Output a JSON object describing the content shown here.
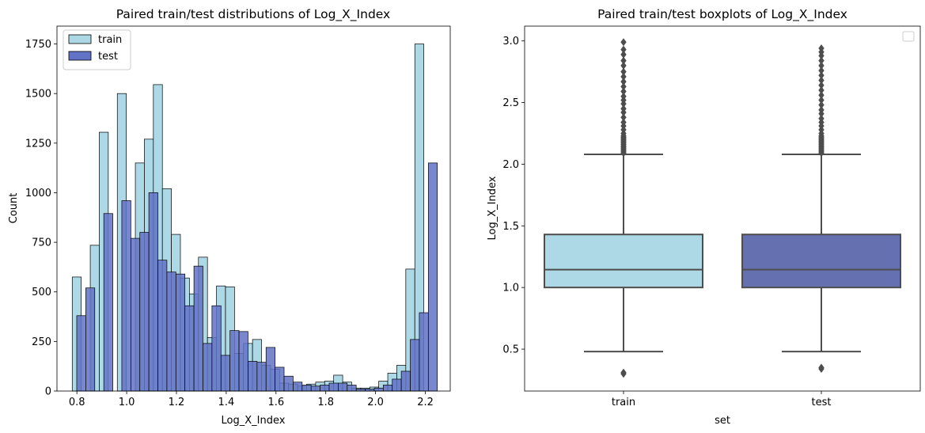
{
  "colors": {
    "train": "#add8e6",
    "test": "#6272c6",
    "test_box": "#6570b0",
    "edge": "#000000",
    "box_line": "#4d4d4d"
  },
  "chart_data": [
    {
      "type": "histogram",
      "title": "Paired train/test distributions of Log_X_Index",
      "xlabel": "Log_X_Index",
      "ylabel": "Count",
      "xlim": [
        0.72,
        2.3
      ],
      "ylim": [
        0,
        1840
      ],
      "xticks": [
        "0.8",
        "1.0",
        "1.2",
        "1.4",
        "1.6",
        "1.8",
        "2.0",
        "2.2"
      ],
      "xtick_values": [
        0.8,
        1.0,
        1.2,
        1.4,
        1.6,
        1.8,
        2.0,
        2.2
      ],
      "yticks": [
        "0",
        "250",
        "500",
        "750",
        "1000",
        "1250",
        "1500",
        "1750"
      ],
      "ytick_values": [
        0,
        250,
        500,
        750,
        1000,
        1250,
        1500,
        1750
      ],
      "legend": {
        "position": "top-left",
        "entries": [
          "train",
          "test"
        ]
      },
      "grid": false,
      "series": [
        {
          "name": "train",
          "bin_start": 0.7813,
          "bin_width": 0.03622,
          "values": [
            575,
            0,
            735,
            1305,
            0,
            1500,
            0,
            1150,
            1270,
            1545,
            1020,
            790,
            570,
            490,
            675,
            270,
            530,
            525,
            190,
            240,
            260,
            130,
            110,
            40,
            35,
            25,
            35,
            45,
            50,
            80,
            45,
            15,
            15,
            20,
            50,
            90,
            130,
            615,
            1750
          ]
        },
        {
          "name": "test",
          "bin_start": 0.7994,
          "bin_width": 0.03622,
          "values": [
            380,
            520,
            0,
            895,
            0,
            960,
            770,
            800,
            1000,
            660,
            600,
            590,
            430,
            630,
            240,
            430,
            180,
            305,
            300,
            150,
            145,
            220,
            120,
            75,
            45,
            30,
            25,
            30,
            40,
            40,
            30,
            10,
            10,
            15,
            30,
            60,
            100,
            260,
            395,
            1150
          ]
        }
      ]
    },
    {
      "type": "boxplot",
      "title": "Paired train/test boxplots of Log_X_Index",
      "xlabel": "set",
      "ylabel": "Log_X_Index",
      "categories": [
        "train",
        "test"
      ],
      "ylim": [
        0.16,
        3.12
      ],
      "yticks": [
        "0.5",
        "1.0",
        "1.5",
        "2.0",
        "2.5",
        "3.0"
      ],
      "ytick_values": [
        0.5,
        1.0,
        1.5,
        2.0,
        2.5,
        3.0
      ],
      "legend": {
        "position": "top-right",
        "entries": []
      },
      "grid": false,
      "boxes": [
        {
          "name": "train",
          "whisker_low": 0.48,
          "q1": 1.0,
          "median": 1.145,
          "q3": 1.43,
          "whisker_high": 2.08,
          "outliers": [
            0.3,
            0.31,
            2.09,
            2.1,
            2.11,
            2.12,
            2.13,
            2.14,
            2.15,
            2.16,
            2.17,
            2.18,
            2.19,
            2.2,
            2.21,
            2.22,
            2.23,
            2.25,
            2.28,
            2.31,
            2.34,
            2.38,
            2.42,
            2.45,
            2.49,
            2.52,
            2.55,
            2.59,
            2.63,
            2.67,
            2.71,
            2.75,
            2.8,
            2.84,
            2.89,
            2.93,
            2.99
          ]
        },
        {
          "name": "test",
          "whisker_low": 0.48,
          "q1": 1.0,
          "median": 1.145,
          "q3": 1.43,
          "whisker_high": 2.08,
          "outliers": [
            0.34,
            0.35,
            2.09,
            2.1,
            2.11,
            2.12,
            2.13,
            2.14,
            2.15,
            2.16,
            2.17,
            2.18,
            2.19,
            2.2,
            2.21,
            2.22,
            2.23,
            2.25,
            2.28,
            2.31,
            2.34,
            2.37,
            2.41,
            2.44,
            2.48,
            2.52,
            2.56,
            2.6,
            2.64,
            2.68,
            2.72,
            2.76,
            2.8,
            2.84,
            2.88,
            2.91,
            2.94
          ]
        }
      ]
    }
  ]
}
